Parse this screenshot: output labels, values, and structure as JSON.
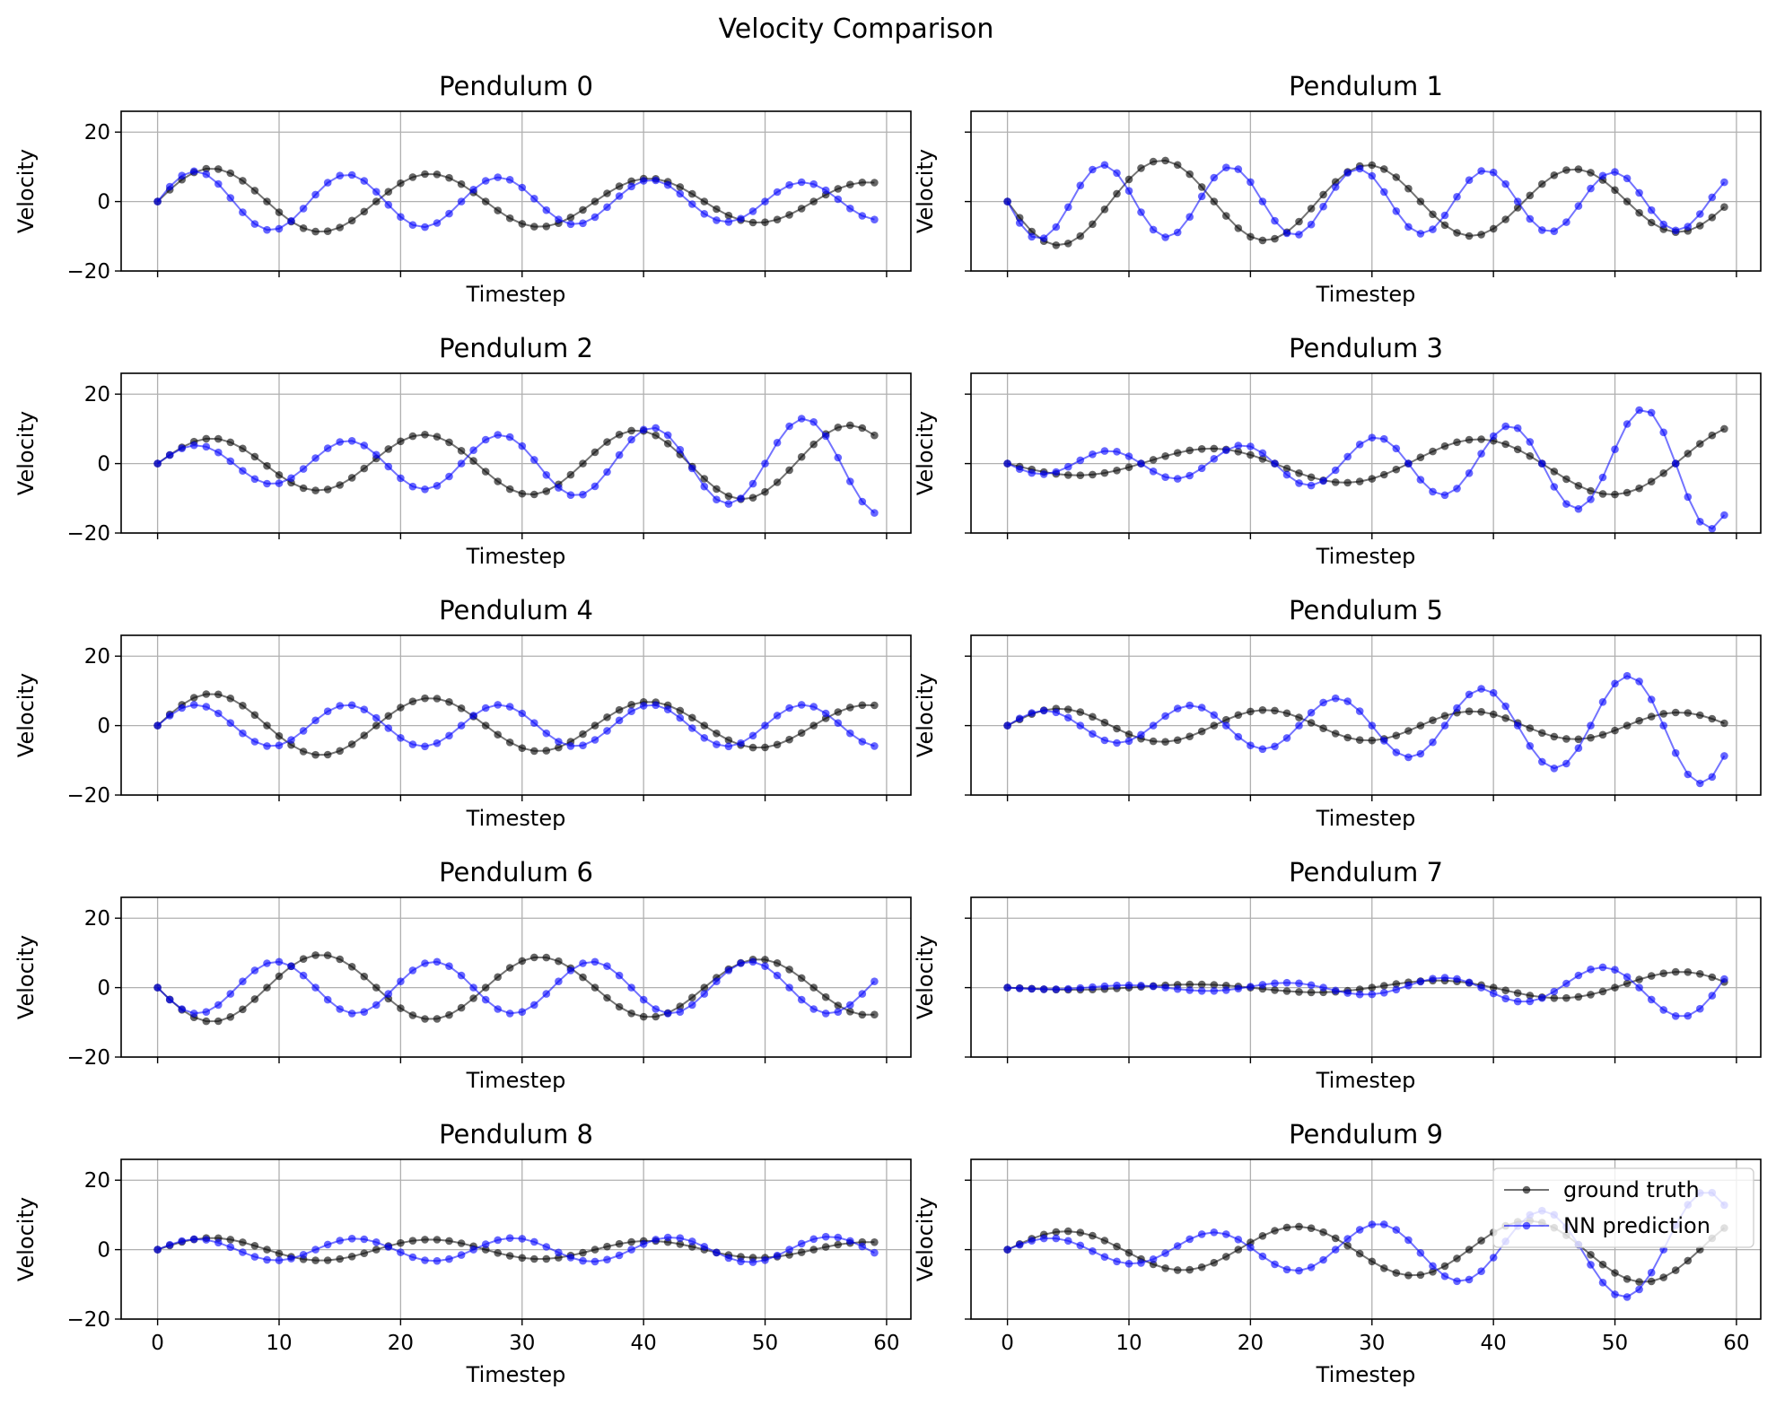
{
  "figure": {
    "title": "Velocity Comparison"
  },
  "colors": {
    "truth": "#000000",
    "pred": "#0000ff",
    "grid": "#b0b0b0",
    "axis": "#000000"
  },
  "chart_data": {
    "type": "line",
    "title": "Velocity Comparison",
    "shared": {
      "xlabel": "Timestep",
      "ylabel": "Velocity",
      "xlim": [
        -3,
        62
      ],
      "ylim": [
        -20,
        26
      ],
      "xticks": [
        0,
        10,
        20,
        30,
        40,
        50,
        60
      ],
      "yticks": [
        -20,
        0,
        20
      ],
      "grid": true,
      "series_names": [
        "ground truth",
        "NN prediction"
      ]
    },
    "legend": {
      "panel": 9,
      "placement": "upper right",
      "entries": [
        "ground truth",
        "NN prediction"
      ]
    },
    "panels": [
      {
        "title": "Pendulum 0",
        "ground_truth": {
          "A": 10.0,
          "period": 18.0,
          "decay": 0.01
        },
        "nn_prediction": {
          "A": 9.0,
          "period": 12.5,
          "decay": 0.009
        }
      },
      {
        "title": "Pendulum 1",
        "ground_truth": {
          "A": -13.0,
          "period": 17.0,
          "decay": 0.007
        },
        "nn_prediction": {
          "A": -11.0,
          "period": 10.5,
          "decay": 0.005
        }
      },
      {
        "title": "Pendulum 2",
        "ground_truth": {
          "A": 7.0,
          "period": 17.5,
          "decay": -0.008
        },
        "nn_prediction": {
          "A": 5.0,
          "period": 12.5,
          "decay": -0.018
        }
      },
      {
        "title": "Pendulum 3",
        "ground_truth": {
          "A": -3.0,
          "period": 22.0,
          "decay": -0.022
        },
        "nn_prediction": {
          "A": -2.8,
          "period": 11.0,
          "decay": -0.033
        }
      },
      {
        "title": "Pendulum 4",
        "ground_truth": {
          "A": 9.5,
          "period": 18.0,
          "decay": 0.008
        },
        "nn_prediction": {
          "A": 6.0,
          "period": 12.5,
          "decay": 0.0
        }
      },
      {
        "title": "Pendulum 5",
        "ground_truth": {
          "A": 5.0,
          "period": 17.0,
          "decay": 0.005
        },
        "nn_prediction": {
          "A": 4.0,
          "period": 12.0,
          "decay": -0.025
        }
      },
      {
        "title": "Pendulum 6",
        "ground_truth": {
          "A": -10.0,
          "period": 18.0,
          "decay": 0.004
        },
        "nn_prediction": {
          "A": -7.5,
          "period": 13.0,
          "decay": 0.0
        }
      },
      {
        "title": "Pendulum 7",
        "ground_truth": {
          "A": -0.5,
          "period": 20.0,
          "decay": -0.04
        },
        "nn_prediction": {
          "A": -0.4,
          "period": 13.0,
          "decay": -0.055
        }
      },
      {
        "title": "Pendulum 8",
        "ground_truth": {
          "A": 3.5,
          "period": 18.0,
          "decay": 0.008
        },
        "nn_prediction": {
          "A": 3.0,
          "period": 13.0,
          "decay": -0.004
        }
      },
      {
        "title": "Pendulum 9",
        "ground_truth": {
          "A": 5.0,
          "period": 19.0,
          "decay": -0.012
        },
        "nn_prediction": {
          "A": 3.0,
          "period": 13.5,
          "decay": -0.03
        }
      }
    ]
  }
}
